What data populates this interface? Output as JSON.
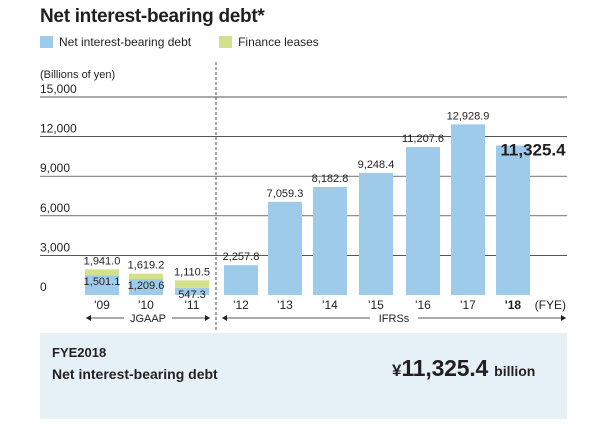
{
  "header": {
    "title": "Net interest-bearing debt*"
  },
  "legend": [
    {
      "label": "Net interest-bearing debt",
      "color": "#9ecbea"
    },
    {
      "label": "Finance leases",
      "color": "#d4e08a"
    }
  ],
  "chart_data": {
    "type": "bar",
    "unit_label": "(Billions of yen)",
    "x_unit_label": "(FYE)",
    "y_ticks": [
      "15,000",
      "12,000",
      "9,000",
      "6,000",
      "3,000",
      "0"
    ],
    "y_tick_values": [
      15000,
      12000,
      9000,
      6000,
      3000,
      0
    ],
    "ylim": [
      0,
      15000
    ],
    "categories": [
      "'09",
      "'10",
      "'11",
      "'12",
      "'13",
      "'14",
      "'15",
      "'16",
      "'17",
      "'18"
    ],
    "series": [
      {
        "name": "Net interest-bearing debt",
        "color": "#9ecbea",
        "values": [
          1501.1,
          1209.6,
          547.3,
          2257.8,
          7059.3,
          8182.8,
          9248.4,
          11207.6,
          12928.9,
          11325.4
        ]
      },
      {
        "name": "Finance leases",
        "color": "#d4e08a",
        "values": [
          439.9,
          409.6,
          563.2,
          null,
          null,
          null,
          null,
          null,
          null,
          null
        ]
      }
    ],
    "total_labels": [
      "1,941.0",
      "1,619.2",
      "1,110.5",
      "2,257.8",
      "7,059.3",
      "8,182.8",
      "9,248.4",
      "11,207.6",
      "12,928.9",
      "11,325.4"
    ],
    "inner_labels": [
      "1,501.1",
      "1,209.6",
      "547.3",
      null,
      null,
      null,
      null,
      null,
      null,
      null
    ],
    "highlight_index": 9,
    "periods": [
      {
        "label": "JGAAP",
        "start": 0,
        "end": 2
      },
      {
        "label": "IFRSs",
        "start": 3,
        "end": 9
      }
    ]
  },
  "summary": {
    "fiscal_label": "FYE2018",
    "metric": "Net interest-bearing debt",
    "currency": "¥",
    "value": "11,325.4",
    "unit": "billion"
  }
}
